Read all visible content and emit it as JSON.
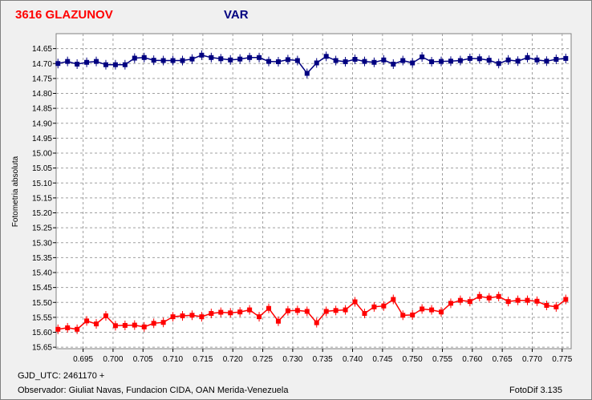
{
  "header": {
    "title": "3616 GLAZUNOV",
    "title_color": "#ff0000",
    "series_label": "VAR",
    "series_label_color": "#000080"
  },
  "footer": {
    "gjd": "GJD_UTC: 2461170 +",
    "observer": "Observador: Giuliat Navas, Fundacion CIDA, OAN  Merida-Venezuela",
    "software": "FotoDif 3.135"
  },
  "chart_data": {
    "type": "line",
    "title": "3616 GLAZUNOV",
    "ylabel": "Fotometria absoluta",
    "xlabel": "",
    "xlim": [
      0.6905,
      0.7765
    ],
    "ylim": [
      14.6,
      15.655
    ],
    "y_inverted": true,
    "grid": true,
    "x_ticks": [
      "0.695",
      "0.700",
      "0.705",
      "0.710",
      "0.715",
      "0.720",
      "0.725",
      "0.730",
      "0.735",
      "0.740",
      "0.745",
      "0.750",
      "0.755",
      "0.760",
      "0.765",
      "0.770",
      "0.775"
    ],
    "y_ticks": [
      "14.65",
      "14.70",
      "14.75",
      "14.80",
      "14.85",
      "14.90",
      "14.95",
      "15.00",
      "15.05",
      "15.10",
      "15.15",
      "15.20",
      "15.25",
      "15.30",
      "15.35",
      "15.40",
      "15.45",
      "15.50",
      "15.55",
      "15.60",
      "15.65"
    ],
    "series": [
      {
        "name": "VAR",
        "color": "#000080",
        "x": [
          0.6908,
          0.6924,
          0.694,
          0.6956,
          0.6972,
          0.6988,
          0.7004,
          0.702,
          0.7036,
          0.7052,
          0.7068,
          0.7084,
          0.71,
          0.7116,
          0.7132,
          0.7148,
          0.7164,
          0.718,
          0.7196,
          0.7212,
          0.7228,
          0.7244,
          0.726,
          0.7276,
          0.7292,
          0.7308,
          0.7324,
          0.734,
          0.7356,
          0.7372,
          0.7388,
          0.7404,
          0.742,
          0.7436,
          0.7452,
          0.7468,
          0.7484,
          0.75,
          0.7516,
          0.7532,
          0.7548,
          0.7564,
          0.758,
          0.7596,
          0.7612,
          0.7628,
          0.7644,
          0.766,
          0.7676,
          0.7692,
          0.7708,
          0.7724,
          0.774,
          0.7756
        ],
        "y": [
          14.7,
          14.693,
          14.702,
          14.696,
          14.693,
          14.704,
          14.704,
          14.704,
          14.682,
          14.68,
          14.689,
          14.69,
          14.69,
          14.69,
          14.685,
          14.672,
          14.68,
          14.684,
          14.688,
          14.685,
          14.68,
          14.68,
          14.693,
          14.694,
          14.687,
          14.69,
          14.733,
          14.698,
          14.676,
          14.69,
          14.694,
          14.686,
          14.693,
          14.696,
          14.688,
          14.702,
          14.69,
          14.698,
          14.678,
          14.694,
          14.693,
          14.692,
          14.69,
          14.683,
          14.684,
          14.689,
          14.7,
          14.688,
          14.692,
          14.68,
          14.688,
          14.692,
          14.686,
          14.683
        ]
      },
      {
        "name": "",
        "color": "#ff0000",
        "x": [
          0.6908,
          0.6924,
          0.694,
          0.6956,
          0.6972,
          0.6988,
          0.7004,
          0.702,
          0.7036,
          0.7052,
          0.7068,
          0.7084,
          0.71,
          0.7116,
          0.7132,
          0.7148,
          0.7164,
          0.718,
          0.7196,
          0.7212,
          0.7228,
          0.7244,
          0.726,
          0.7276,
          0.7292,
          0.7308,
          0.7324,
          0.734,
          0.7356,
          0.7372,
          0.7388,
          0.7404,
          0.742,
          0.7436,
          0.7452,
          0.7468,
          0.7484,
          0.75,
          0.7516,
          0.7532,
          0.7548,
          0.7564,
          0.758,
          0.7596,
          0.7612,
          0.7628,
          0.7644,
          0.766,
          0.7676,
          0.7692,
          0.7708,
          0.7724,
          0.774,
          0.7756
        ],
        "y": [
          15.59,
          15.585,
          15.59,
          15.562,
          15.572,
          15.545,
          15.578,
          15.577,
          15.576,
          15.582,
          15.57,
          15.567,
          15.548,
          15.545,
          15.543,
          15.548,
          15.537,
          15.533,
          15.535,
          15.532,
          15.525,
          15.548,
          15.52,
          15.563,
          15.528,
          15.527,
          15.53,
          15.568,
          15.53,
          15.527,
          15.525,
          15.498,
          15.537,
          15.515,
          15.512,
          15.49,
          15.543,
          15.542,
          15.522,
          15.525,
          15.532,
          15.503,
          15.493,
          15.497,
          15.48,
          15.485,
          15.48,
          15.497,
          15.493,
          15.493,
          15.496,
          15.51,
          15.515,
          15.49
        ]
      }
    ]
  }
}
